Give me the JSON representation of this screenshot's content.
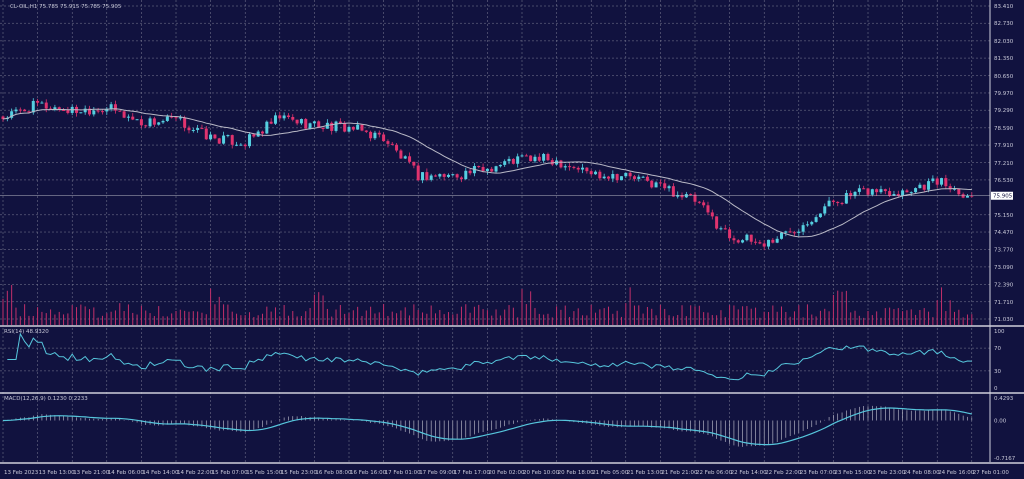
{
  "header": {
    "symbol_info": "CL-OIL,H1  75.785 75.915 75.785 75.905"
  },
  "colors": {
    "background": "#11123f",
    "grid": "#7f8096",
    "bull": "#55cfe0",
    "bear": "#e0336e",
    "ma": "#b9b9c6",
    "rsi": "#56c6dc",
    "macd_signal": "#56c6dc",
    "macd_hist": "#c9c9d6",
    "volume": "#c2306a"
  },
  "chart_data": [
    {
      "type": "candlestick",
      "title": "CL-OIL,H1",
      "last_bar": {
        "open": 75.785,
        "high": 75.915,
        "low": 75.785,
        "close": 75.905
      },
      "current_price_label": "75.905",
      "ylim": [
        71.03,
        83.41
      ],
      "y_ticks": [
        "83.410",
        "82.730",
        "82.030",
        "81.350",
        "80.650",
        "79.970",
        "79.290",
        "78.590",
        "77.910",
        "77.210",
        "76.530",
        "75.150",
        "74.470",
        "73.770",
        "73.090",
        "72.390",
        "71.710",
        "71.030"
      ],
      "x_ticks": [
        "13 Feb 2023",
        "13 Feb 13:00",
        "13 Feb 21:00",
        "14 Feb 06:00",
        "14 Feb 14:00",
        "14 Feb 22:00",
        "15 Feb 07:00",
        "15 Feb 15:00",
        "15 Feb 23:00",
        "16 Feb 08:00",
        "16 Feb 16:00",
        "17 Feb 01:00",
        "17 Feb 09:00",
        "17 Feb 17:00",
        "20 Feb 02:00",
        "20 Feb 10:00",
        "20 Feb 18:00",
        "21 Feb 05:00",
        "21 Feb 13:00",
        "21 Feb 21:00",
        "22 Feb 06:00",
        "22 Feb 14:00",
        "22 Feb 22:00",
        "23 Feb 07:00",
        "23 Feb 15:00",
        "23 Feb 23:00",
        "24 Feb 08:00",
        "24 Feb 16:00",
        "27 Feb 01:00"
      ],
      "approx_close_at_ticks": [
        78.99,
        79.5,
        79.27,
        79.4,
        78.8,
        78.9,
        78.2,
        78.0,
        79.0,
        78.7,
        78.6,
        78.2,
        76.7,
        76.7,
        77.0,
        77.4,
        77.3,
        76.8,
        76.7,
        76.3,
        75.7,
        74.3,
        74.0,
        74.7,
        75.7,
        76.1,
        76.1,
        76.5,
        75.9
      ],
      "overlays": [
        "moving average",
        "volume"
      ],
      "grid": true
    },
    {
      "type": "line",
      "title": "RSI(14) 48.9320",
      "ylim": [
        0,
        100
      ],
      "y_ticks": [
        "100",
        "70",
        "30",
        "0"
      ]
    },
    {
      "type": "bar+line",
      "title": "MACD(12,26,9) 0.1230 0.2233",
      "ylim": [
        -0.7167,
        0.4293
      ],
      "y_ticks": [
        "0.4293",
        "0.00",
        "-0.7167"
      ]
    }
  ]
}
